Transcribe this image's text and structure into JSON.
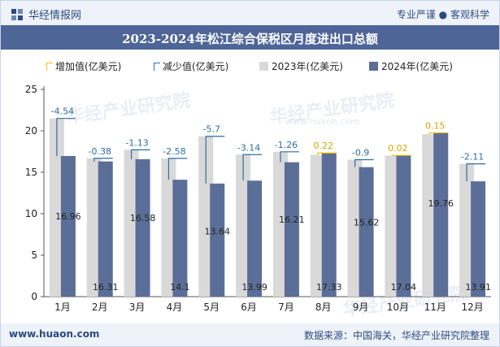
{
  "header": {
    "brand": "华经情报网",
    "tagline_left": "专业严谨",
    "tagline_sep": "●",
    "tagline_right": "客观科学"
  },
  "title": "2023-2024年松江综合保税区月度进出口总额",
  "legend": {
    "increase": "增加值(亿美元)",
    "decrease": "减少值(亿美元)",
    "y2023": "2023年(亿美元)",
    "y2024": "2024年(亿美元)"
  },
  "footer": {
    "site": "www.huaon.com",
    "source": "数据来源：中国海关，华经产业研究院整理"
  },
  "watermark": {
    "text": "华经产业研究院",
    "url": "www.huaon.com"
  },
  "colors": {
    "y2023": "#d9d9d9",
    "y2024": "#5b6e98",
    "increase": "#f0c000",
    "decrease": "#2e6f9e",
    "title_bg": "#4e6597"
  },
  "chart_data": {
    "type": "bar",
    "categories": [
      "1月",
      "2月",
      "3月",
      "4月",
      "5月",
      "6月",
      "7月",
      "8月",
      "9月",
      "10月",
      "11月",
      "12月"
    ],
    "series": [
      {
        "name": "2023年(亿美元)",
        "values": [
          21.5,
          16.69,
          17.71,
          16.68,
          19.34,
          17.13,
          17.47,
          17.11,
          16.52,
          17.02,
          19.61,
          16.02
        ]
      },
      {
        "name": "2024年(亿美元)",
        "values": [
          16.96,
          16.31,
          16.58,
          14.1,
          13.64,
          13.99,
          16.21,
          17.33,
          15.62,
          17.04,
          19.76,
          13.91
        ]
      }
    ],
    "change_labels": [
      "-4.54",
      "-0.38",
      "-1.13",
      "-2.58",
      "-5.7",
      "-3.14",
      "-1.26",
      "0.22",
      "-0.9",
      "0.02",
      "0.15",
      "-2.11"
    ],
    "change_values": [
      -4.54,
      -0.38,
      -1.13,
      -2.58,
      -5.7,
      -3.14,
      -1.26,
      0.22,
      -0.9,
      0.02,
      0.15,
      -2.11
    ],
    "value_labels_2024": [
      "16.96",
      "16.31",
      "16.58",
      "14.1",
      "13.64",
      "13.99",
      "16.21",
      "17.33",
      "15.62",
      "17.04",
      "19.76",
      "13.91"
    ],
    "yticks": [
      "0",
      "5",
      "10",
      "15",
      "20",
      "25"
    ],
    "ylim": [
      0,
      25
    ],
    "grid": false
  }
}
